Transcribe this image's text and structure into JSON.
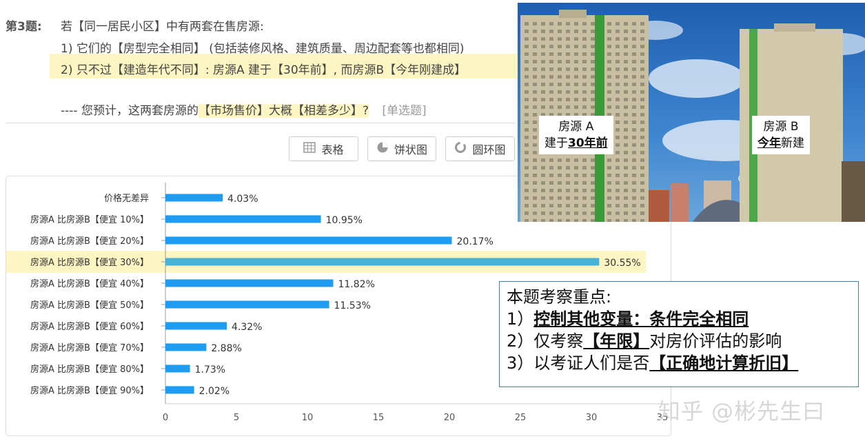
{
  "question": {
    "number": "第3题:",
    "line0": "若【同一居民小区】中有两套在售房源:",
    "line1": "1) 它们的【房型完全相同】 (包括装修风格、建筑质量、周边配套等也都相同)",
    "line2": "2) 只不过【建造年代不同】: 房源A 建于【30年前】, 而房源B【今年刚建成】",
    "line3_prefix": "---- 您预计，这两套房源的",
    "line3_highlight": "【市场售价】大概【相差多少】?",
    "line3_tag": "[单选题]"
  },
  "toolbar": {
    "table_label": "表格",
    "pie_label": "饼状图",
    "donut_label": "圆环图"
  },
  "chart_data": {
    "type": "bar",
    "orientation": "horizontal",
    "categories": [
      "价格无差异",
      "房源A 比房源B【便宜 10%】",
      "房源A 比房源B【便宜 20%】",
      "房源A 比房源B【便宜 30%】",
      "房源A 比房源B【便宜 40%】",
      "房源A 比房源B【便宜 50%】",
      "房源A 比房源B【便宜 60%】",
      "房源A 比房源B【便宜 70%】",
      "房源A 比房源B【便宜 80%】",
      "房源A 比房源B【便宜 90%】"
    ],
    "values": [
      4.03,
      10.95,
      20.17,
      30.55,
      11.82,
      11.53,
      4.32,
      2.88,
      1.73,
      2.02
    ],
    "value_labels": [
      "4.03%",
      "10.95%",
      "20.17%",
      "30.55%",
      "11.82%",
      "11.53%",
      "4.32%",
      "2.88%",
      "1.73%",
      "2.02%"
    ],
    "xticks": [
      "0",
      "5",
      "10",
      "15",
      "20",
      "25",
      "30",
      "35"
    ],
    "xlim": [
      0,
      35
    ],
    "highlight_index": 3,
    "bar_color": "#1e9cf0",
    "highlight_bar_color": "#45b2d6",
    "highlight_bg": "#fdf6c3",
    "grid": false
  },
  "photo": {
    "label_a_line1": "房源 A",
    "label_a_prefix": "建于",
    "label_a_bold": "30年前",
    "label_b_line1": "房源 B",
    "label_b_bold": "今年",
    "label_b_suffix": "新建"
  },
  "note": {
    "title": "本题考察重点:",
    "item1_prefix": "1）",
    "item1_bold": "控制其他变量：条件完全相同",
    "item2_prefix": "2）仅考察",
    "item2_bold": "【年限】",
    "item2_suffix": "对房价评估的影响",
    "item3_prefix": "3）以考证人们是否",
    "item3_bold": "【正确地计算折旧】"
  },
  "watermark": "知乎 @彬先生曰"
}
